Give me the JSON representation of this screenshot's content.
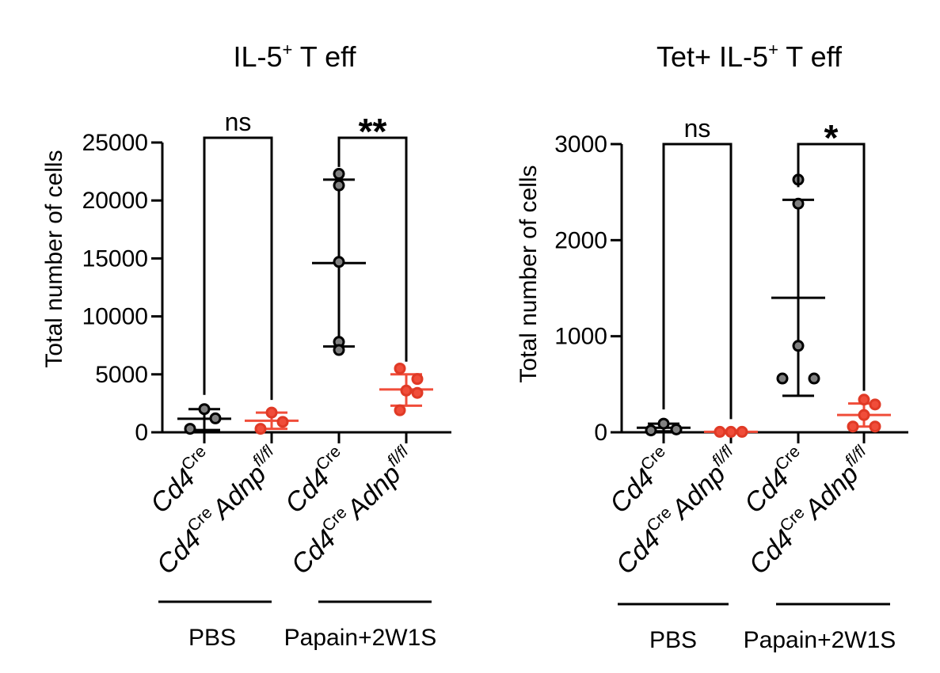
{
  "chart_data": [
    {
      "type": "scatter",
      "title_main": "IL-5",
      "title_sup": "+",
      "title_rest": " T eff",
      "ylabel": "Total number of cells",
      "ylim": [
        0,
        25000
      ],
      "yticks": [
        0,
        5000,
        10000,
        15000,
        20000,
        25000
      ],
      "groups": [
        {
          "label_parts": [
            "Cd4",
            "Cre"
          ],
          "series": "control",
          "color": "#808080",
          "points": [
            300,
            2000,
            1200
          ],
          "mean": 1170,
          "sd": [
            200,
            2000
          ]
        },
        {
          "label_parts": [
            "Cd4",
            "Cre",
            "Adnp",
            "fl/fl"
          ],
          "series": "knockout",
          "color": "#f04d3a",
          "points": [
            300,
            1700,
            900
          ],
          "mean": 1000,
          "sd": [
            300,
            1700
          ]
        },
        {
          "label_parts": [
            "Cd4",
            "Cre"
          ],
          "series": "control",
          "color": "#808080",
          "points": [
            22300,
            21300,
            14700,
            7800,
            7100
          ],
          "mean": 14600,
          "sd": [
            7400,
            21800
          ]
        },
        {
          "label_parts": [
            "Cd4",
            "Cre",
            "Adnp",
            "fl/fl"
          ],
          "series": "knockout",
          "color": "#f04d3a",
          "points": [
            5500,
            4600,
            3600,
            3400,
            1900
          ],
          "mean": 3700,
          "sd": [
            2300,
            5000
          ]
        }
      ],
      "comparisons": [
        {
          "groups": [
            0,
            1
          ],
          "label": "ns"
        },
        {
          "groups": [
            2,
            3
          ],
          "label": "**"
        }
      ],
      "conditions": [
        {
          "label": "PBS",
          "groups": [
            0,
            1
          ]
        },
        {
          "label": "Papain+2W1S",
          "groups": [
            2,
            3
          ]
        }
      ]
    },
    {
      "type": "scatter",
      "title_main": "Tet+ IL-5",
      "title_sup": "+",
      "title_rest": " T eff",
      "ylabel": "Total number of cells",
      "ylim": [
        0,
        3000
      ],
      "yticks": [
        0,
        1000,
        2000,
        3000
      ],
      "groups": [
        {
          "label_parts": [
            "Cd4",
            "Cre"
          ],
          "series": "control",
          "color": "#808080",
          "points": [
            20,
            90,
            30
          ],
          "mean": 47,
          "sd": [
            10,
            90
          ]
        },
        {
          "label_parts": [
            "Cd4",
            "Cre",
            "Adnp",
            "fl/fl"
          ],
          "series": "knockout",
          "color": "#f04d3a",
          "points": [
            5,
            5,
            5
          ],
          "mean": 5,
          "sd": [
            5,
            5
          ]
        },
        {
          "label_parts": [
            "Cd4",
            "Cre"
          ],
          "series": "control",
          "color": "#808080",
          "points": [
            2630,
            2380,
            900,
            560,
            560
          ],
          "mean": 1400,
          "sd": [
            380,
            2420
          ]
        },
        {
          "label_parts": [
            "Cd4",
            "Cre",
            "Adnp",
            "fl/fl"
          ],
          "series": "knockout",
          "color": "#f04d3a",
          "points": [
            340,
            290,
            180,
            60,
            60
          ],
          "mean": 180,
          "sd": [
            60,
            300
          ]
        }
      ],
      "comparisons": [
        {
          "groups": [
            0,
            1
          ],
          "label": "ns"
        },
        {
          "groups": [
            2,
            3
          ],
          "label": "*"
        }
      ],
      "conditions": [
        {
          "label": "PBS",
          "groups": [
            0,
            1
          ]
        },
        {
          "label": "Papain+2W1S",
          "groups": [
            2,
            3
          ]
        }
      ]
    }
  ]
}
